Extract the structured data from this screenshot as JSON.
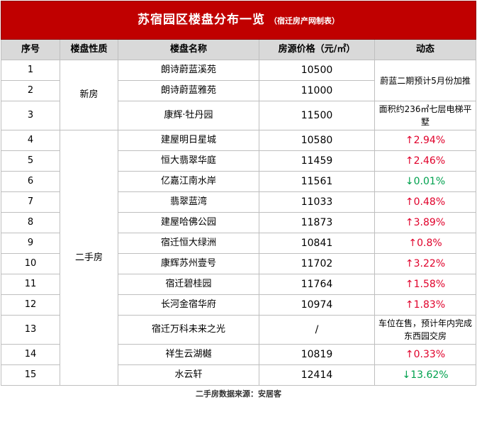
{
  "title": "苏宿园区楼盘分布一览",
  "subtitle": "（宿迁房产网制表）",
  "headers": [
    "序号",
    "楼盘性质",
    "楼盘名称",
    "房源价格（元/㎡）",
    "动态"
  ],
  "groups": {
    "new": "新房",
    "second": "二手房"
  },
  "rows": [
    {
      "idx": "1",
      "name": "朗诗蔚蓝溪苑",
      "price": "10500"
    },
    {
      "idx": "2",
      "name": "朗诗蔚蓝雅苑",
      "price": "11000"
    },
    {
      "idx": "3",
      "name": "康辉·牡丹园",
      "price": "11500",
      "trend": "面积约236㎡七层电梯平墅"
    },
    {
      "idx": "4",
      "name": "建屋明日星城",
      "price": "10580",
      "trend": "↑2.94%"
    },
    {
      "idx": "5",
      "name": "恒大翡翠华庭",
      "price": "11459",
      "trend": "↑2.46%"
    },
    {
      "idx": "6",
      "name": "亿嘉江南水岸",
      "price": "11561",
      "trend": "↓0.01%"
    },
    {
      "idx": "7",
      "name": "翡翠蓝湾",
      "price": "11033",
      "trend": "↑0.48%"
    },
    {
      "idx": "8",
      "name": "建屋哈佛公园",
      "price": "11873",
      "trend": "↑3.89%"
    },
    {
      "idx": "9",
      "name": "宿迁恒大绿洲",
      "price": "10841",
      "trend": "↑0.8%"
    },
    {
      "idx": "10",
      "name": "康辉苏州壹号",
      "price": "11702",
      "trend": "↑3.22%"
    },
    {
      "idx": "11",
      "name": "宿迁碧桂园",
      "price": "11764",
      "trend": "↑1.58%"
    },
    {
      "idx": "12",
      "name": "长河金宿华府",
      "price": "10974",
      "trend": "↑1.83%"
    },
    {
      "idx": "13",
      "name": "宿迁万科未来之光",
      "price": "/",
      "trend": "车位在售，预计年内完成东西园交房"
    },
    {
      "idx": "14",
      "name": "祥生云湖樾",
      "price": "10819",
      "trend": "↑0.33%"
    },
    {
      "idx": "15",
      "name": "水云轩",
      "price": "12414",
      "trend": "↓13.62%"
    }
  ],
  "trend_shared_1_2": "蔚蓝二期预计5月份加推",
  "footer": "二手房数据来源：安居客",
  "colors": {
    "title_bg": "#c00000",
    "header_bg": "#d9d9d9",
    "up": "#e0002a",
    "down": "#00a14e"
  }
}
